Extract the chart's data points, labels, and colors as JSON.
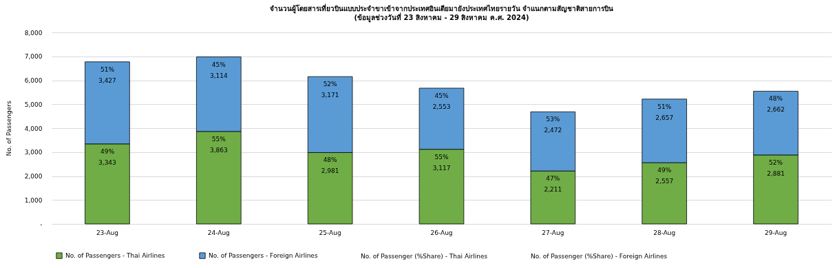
{
  "chart_data": {
    "type": "bar",
    "title": "จำนวนผู้โดยสารเที่ยวบินแบบประจำขาเข้าจากประเทศอินเดียมายังประเทศไทยรายวัน  จำแนกตามสัญชาติสายการบิน",
    "subtitle": "(ข้อมูลช่วงวันที่ 23 สิงหาคม - 29 สิงหาคม ค.ศ. 2024)",
    "ylabel": "No. of Passengers",
    "categories": [
      "23-Aug",
      "24-Aug",
      "25-Aug",
      "26-Aug",
      "27-Aug",
      "28-Aug",
      "29-Aug"
    ],
    "stacked": true,
    "series": [
      {
        "name": "No. of Passengers - Thai Airlines",
        "color": "#70ad47",
        "values": [
          3343,
          3863,
          2981,
          3117,
          2211,
          2557,
          2881
        ],
        "value_labels": [
          "3,343",
          "3,863",
          "2,981",
          "3,117",
          "2,211",
          "2,557",
          "2,881"
        ]
      },
      {
        "name": "No. of Passengers - Foreign Airlines",
        "color": "#5b9bd5",
        "values": [
          3427,
          3114,
          3171,
          2553,
          2472,
          2657,
          2662
        ],
        "value_labels": [
          "3,427",
          "3,114",
          "3,171",
          "2,553",
          "2,472",
          "2,657",
          "2,662"
        ]
      }
    ],
    "annotations": [
      "No. of Passenger (%Share) - Thai Airlines",
      "No. of Passenger (%Share) - Foreign Airlines",
      {
        "text": "49%",
        "x": "23-Aug",
        "y": 3343
      },
      {
        "text": "55%",
        "x": "24-Aug",
        "y": 3863
      },
      {
        "text": "48%",
        "x": "25-Aug",
        "y": 2981
      },
      {
        "text": "55%",
        "x": "26-Aug",
        "y": 3117
      },
      {
        "text": "47%",
        "x": "27-Aug",
        "y": 2211
      },
      {
        "text": "49%",
        "x": "28-Aug",
        "y": 2557
      },
      {
        "text": "52%",
        "x": "29-Aug",
        "y": 2881
      },
      {
        "text": "51%",
        "x": "23-Aug",
        "y": 6770
      },
      {
        "text": "45%",
        "x": "24-Aug",
        "y": 6977
      },
      {
        "text": "52%",
        "x": "25-Aug",
        "y": 6152
      },
      {
        "text": "45%",
        "x": "26-Aug",
        "y": 5670
      },
      {
        "text": "53%",
        "x": "27-Aug",
        "y": 4683
      },
      {
        "text": "51%",
        "x": "28-Aug",
        "y": 5214
      },
      {
        "text": "48%",
        "x": "29-Aug",
        "y": 5543
      }
    ],
    "ylim": [
      0,
      8000
    ],
    "yticks": [
      {
        "value": 0,
        "label": "-"
      },
      {
        "value": 1000,
        "label": "1,000"
      },
      {
        "value": 2000,
        "label": "2,000"
      },
      {
        "value": 3000,
        "label": "3,000"
      },
      {
        "value": 4000,
        "label": "4,000"
      },
      {
        "value": 5000,
        "label": "5,000"
      },
      {
        "value": 6000,
        "label": "6,000"
      },
      {
        "value": 7000,
        "label": "7,000"
      },
      {
        "value": 8000,
        "label": "8,000"
      }
    ],
    "grid": "y",
    "legend": "bottom"
  }
}
